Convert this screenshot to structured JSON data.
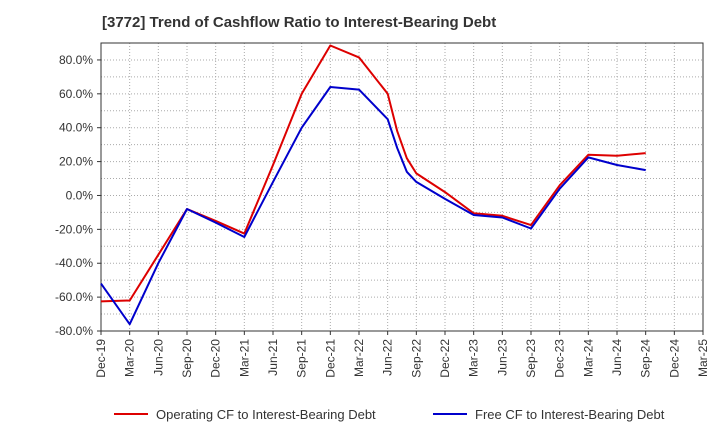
{
  "chart_data": {
    "type": "line",
    "title": "[3772]  Trend of Cashflow Ratio to Interest-Bearing Debt",
    "xlabel": "",
    "ylabel": "",
    "ylim": [
      -80,
      90
    ],
    "y_ticks": [
      80,
      60,
      40,
      20,
      0,
      -20,
      -40,
      -60,
      -80
    ],
    "y_tick_labels": [
      "80.0%",
      "60.0%",
      "40.0%",
      "20.0%",
      "0.0%",
      "-20.0%",
      "-40.0%",
      "-60.0%",
      "-80.0%"
    ],
    "x_ticks": [
      "Dec-19",
      "Mar-20",
      "Jun-20",
      "Sep-20",
      "Dec-20",
      "Mar-21",
      "Jun-21",
      "Sep-21",
      "Dec-21",
      "Mar-22",
      "Jun-22",
      "Sep-22",
      "Dec-22",
      "Mar-23",
      "Jun-23",
      "Sep-23",
      "Dec-23",
      "Mar-24",
      "Jun-24",
      "Sep-24",
      "Dec-24",
      "Mar-25"
    ],
    "grid": true,
    "legend_position": "bottom",
    "series": [
      {
        "name": "Operating CF to Interest-Bearing Debt",
        "color": "#dd0000",
        "points": [
          {
            "x": "Dec-19",
            "y": -62.5
          },
          {
            "x": "Mar-20",
            "y": -62.0
          },
          {
            "x": "Jun-20",
            "y": -35.0
          },
          {
            "x": "Sep-20",
            "y": -8.0
          },
          {
            "x": "Dec-20",
            "y": -15.0
          },
          {
            "x": "Mar-21",
            "y": -22.5
          },
          {
            "x": "Jun-21",
            "y": 18.0
          },
          {
            "x": "Sep-21",
            "y": 60.0
          },
          {
            "x": "Dec-21",
            "y": 88.5
          },
          {
            "x": "Mar-22",
            "y": 81.5
          },
          {
            "x": "Jun-22",
            "y": 60.0
          },
          {
            "x": "Jul-22",
            "y": 38.0
          },
          {
            "x": "Aug-22",
            "y": 22.0
          },
          {
            "x": "Sep-22",
            "y": 13.0
          },
          {
            "x": "Dec-22",
            "y": 2.0
          },
          {
            "x": "Mar-23",
            "y": -10.5
          },
          {
            "x": "Jun-23",
            "y": -12.0
          },
          {
            "x": "Sep-23",
            "y": -17.5
          },
          {
            "x": "Dec-23",
            "y": 6.0
          },
          {
            "x": "Mar-24",
            "y": 24.0
          },
          {
            "x": "Jun-24",
            "y": 23.5
          },
          {
            "x": "Sep-24",
            "y": 25.0
          }
        ]
      },
      {
        "name": "Free CF to Interest-Bearing Debt",
        "color": "#0000cc",
        "points": [
          {
            "x": "Dec-19",
            "y": -52.0
          },
          {
            "x": "Mar-20",
            "y": -76.0
          },
          {
            "x": "Jun-20",
            "y": -40.0
          },
          {
            "x": "Sep-20",
            "y": -8.0
          },
          {
            "x": "Dec-20",
            "y": -16.0
          },
          {
            "x": "Mar-21",
            "y": -24.5
          },
          {
            "x": "Jun-21",
            "y": 8.0
          },
          {
            "x": "Sep-21",
            "y": 40.0
          },
          {
            "x": "Dec-21",
            "y": 64.0
          },
          {
            "x": "Mar-22",
            "y": 62.5
          },
          {
            "x": "Jun-22",
            "y": 45.0
          },
          {
            "x": "Jul-22",
            "y": 28.0
          },
          {
            "x": "Aug-22",
            "y": 14.0
          },
          {
            "x": "Sep-22",
            "y": 8.0
          },
          {
            "x": "Dec-22",
            "y": -2.0
          },
          {
            "x": "Mar-23",
            "y": -11.5
          },
          {
            "x": "Jun-23",
            "y": -13.0
          },
          {
            "x": "Sep-23",
            "y": -19.5
          },
          {
            "x": "Dec-23",
            "y": 4.0
          },
          {
            "x": "Mar-24",
            "y": 22.5
          },
          {
            "x": "Jun-24",
            "y": 18.0
          },
          {
            "x": "Sep-24",
            "y": 15.0
          }
        ]
      }
    ]
  }
}
